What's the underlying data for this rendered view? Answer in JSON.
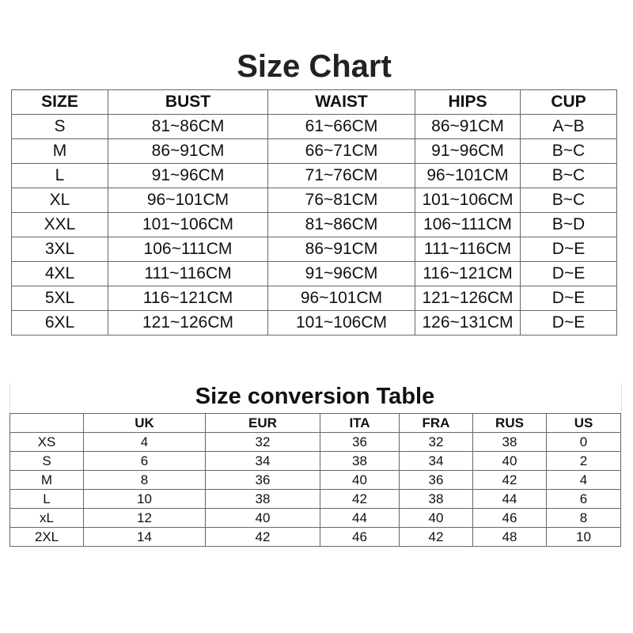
{
  "size_chart": {
    "title": "Size Chart",
    "headers": [
      "SIZE",
      "BUST",
      "WAIST",
      "HIPS",
      "CUP"
    ],
    "rows": [
      [
        "S",
        "81~86CM",
        "61~66CM",
        "86~91CM",
        "A~B"
      ],
      [
        "M",
        "86~91CM",
        "66~71CM",
        "91~96CM",
        "B~C"
      ],
      [
        "L",
        "91~96CM",
        "71~76CM",
        "96~101CM",
        "B~C"
      ],
      [
        "XL",
        "96~101CM",
        "76~81CM",
        "101~106CM",
        "B~C"
      ],
      [
        "XXL",
        "101~106CM",
        "81~86CM",
        "106~111CM",
        "B~D"
      ],
      [
        "3XL",
        "106~111CM",
        "86~91CM",
        "111~116CM",
        "D~E"
      ],
      [
        "4XL",
        "111~116CM",
        "91~96CM",
        "116~121CM",
        "D~E"
      ],
      [
        "5XL",
        "116~121CM",
        "96~101CM",
        "121~126CM",
        "D~E"
      ],
      [
        "6XL",
        "121~126CM",
        "101~106CM",
        "126~131CM",
        "D~E"
      ]
    ]
  },
  "conversion_table": {
    "title": "Size conversion Table",
    "headers": [
      "",
      "UK",
      "EUR",
      "ITA",
      "FRA",
      "RUS",
      "US"
    ],
    "rows": [
      [
        "XS",
        "4",
        "32",
        "36",
        "32",
        "38",
        "0"
      ],
      [
        "S",
        "6",
        "34",
        "38",
        "34",
        "40",
        "2"
      ],
      [
        "M",
        "8",
        "36",
        "40",
        "36",
        "42",
        "4"
      ],
      [
        "L",
        "10",
        "38",
        "42",
        "38",
        "44",
        "6"
      ],
      [
        "xL",
        "12",
        "40",
        "44",
        "40",
        "46",
        "8"
      ],
      [
        "2XL",
        "14",
        "42",
        "46",
        "42",
        "48",
        "10"
      ]
    ]
  }
}
